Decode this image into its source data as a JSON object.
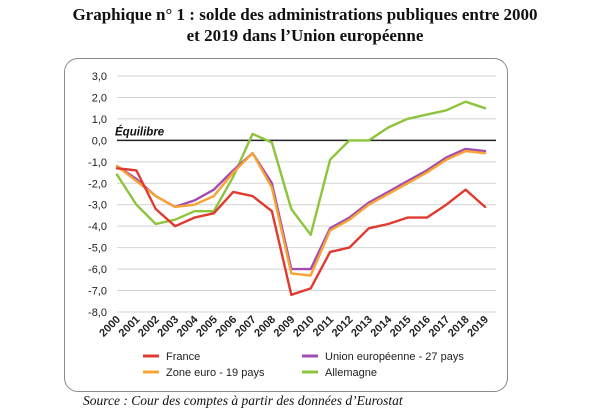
{
  "title_line1": "Graphique n° 1 : solde des administrations publiques entre 2000",
  "title_line2": "et 2019 dans l’Union européenne",
  "source": "Source : Cour des comptes à partir des données d’Eurostat",
  "chart_data": {
    "type": "line",
    "x": [
      "2000",
      "2001",
      "2002",
      "2003",
      "2004",
      "2005",
      "2006",
      "2007",
      "2008",
      "2009",
      "2010",
      "2011",
      "2012",
      "2013",
      "2014",
      "2015",
      "2016",
      "2017",
      "2018",
      "2019"
    ],
    "ylim": [
      -8,
      3
    ],
    "yticks": [
      "3,0",
      "2,0",
      "1,0",
      "0,0",
      "-1,0",
      "-2,0",
      "-3,0",
      "-4,0",
      "-5,0",
      "-6,0",
      "-7,0",
      "-8,0"
    ],
    "grid": true,
    "legend_position": "bottom",
    "annotation": "Équilibre",
    "series": [
      {
        "name": "France",
        "color": "#e03a31",
        "values": [
          -1.3,
          -1.4,
          -3.2,
          -4.0,
          -3.6,
          -3.4,
          -2.4,
          -2.6,
          -3.3,
          -7.2,
          -6.9,
          -5.2,
          -5.0,
          -4.1,
          -3.9,
          -3.6,
          -3.6,
          -3.0,
          -2.3,
          -3.1
        ]
      },
      {
        "name": "Union européenne - 27 pays",
        "color": "#a24bb2",
        "values": [
          -1.2,
          -1.8,
          -2.6,
          -3.1,
          -2.8,
          -2.3,
          -1.4,
          -0.6,
          -2.0,
          -6.0,
          -6.0,
          -4.1,
          -3.6,
          -2.9,
          -2.4,
          -1.9,
          -1.4,
          -0.8,
          -0.4,
          -0.5
        ]
      },
      {
        "name": "Zone euro - 19 pays",
        "color": "#f7a432",
        "values": [
          -1.2,
          -1.9,
          -2.6,
          -3.1,
          -3.0,
          -2.6,
          -1.5,
          -0.6,
          -2.2,
          -6.2,
          -6.3,
          -4.2,
          -3.7,
          -3.0,
          -2.5,
          -2.0,
          -1.5,
          -0.9,
          -0.5,
          -0.6
        ]
      },
      {
        "name": "Allemagne",
        "color": "#8dc43d",
        "values": [
          -1.6,
          -3.0,
          -3.9,
          -3.7,
          -3.3,
          -3.3,
          -1.7,
          0.3,
          -0.1,
          -3.2,
          -4.4,
          -0.9,
          0.0,
          0.0,
          0.6,
          1.0,
          1.2,
          1.4,
          1.8,
          1.5
        ]
      }
    ]
  }
}
